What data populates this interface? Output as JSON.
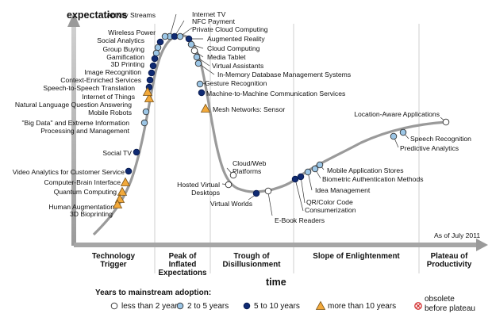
{
  "chart_data": {
    "type": "scatter",
    "y_axis_label": "expectations",
    "x_axis_label": "time",
    "as_of": "As of July 2011",
    "phases": [
      [
        "Technology",
        "Trigger"
      ],
      [
        "Peak of",
        "Inflated",
        "Expectations"
      ],
      [
        "Trough of",
        "Disillusionment"
      ],
      [
        "Slope of Enlightenment"
      ],
      [
        "Plateau of",
        "Productivity"
      ]
    ],
    "legend": {
      "title": "Years to mainstream adoption:",
      "items": [
        {
          "key": "lt2",
          "label": "less than 2 years",
          "color": "#ffffff"
        },
        {
          "key": "2to5",
          "label": "2 to 5 years",
          "color": "#9cc6e6"
        },
        {
          "key": "5to10",
          "label": "5 to 10 years",
          "color": "#0f2a72"
        },
        {
          "key": "gt10",
          "label": "more than 10 years",
          "color": "#f2a93b"
        },
        {
          "key": "obs",
          "label": [
            "obsolete",
            "before plateau"
          ],
          "color": "#d32f2f"
        }
      ]
    },
    "technologies": [
      {
        "name": "Internet TV",
        "cat": "2to5"
      },
      {
        "name": "NFC Payment",
        "cat": "5to10"
      },
      {
        "name": "Private Cloud Computing",
        "cat": "2to5"
      },
      {
        "name": "Augmented Reality",
        "cat": "5to10"
      },
      {
        "name": "Cloud Computing",
        "cat": "2to5"
      },
      {
        "name": "Media Tablet",
        "cat": "lt2"
      },
      {
        "name": "Virtual Assistants",
        "cat": "2to5"
      },
      {
        "name": "In-Memory Database Management Systems",
        "cat": "2to5"
      },
      {
        "name": "Gesture Recognition",
        "cat": "2to5"
      },
      {
        "name": "Machine-to-Machine Communication Services",
        "cat": "5to10"
      },
      {
        "name": "Mesh Networks: Sensor",
        "cat": "gt10"
      },
      {
        "name": "Activity Streams",
        "cat": "2to5"
      },
      {
        "name": "Wireless Power",
        "cat": "5to10"
      },
      {
        "name": "Social Analytics",
        "cat": "2to5"
      },
      {
        "name": "Group Buying",
        "cat": "2to5"
      },
      {
        "name": "Gamification",
        "cat": "5to10"
      },
      {
        "name": "3D Printing",
        "cat": "5to10"
      },
      {
        "name": "Image Recognition",
        "cat": "5to10"
      },
      {
        "name": "Context-Enriched Services",
        "cat": "5to10"
      },
      {
        "name": "Speech-to-Speech Translation",
        "cat": "5to10"
      },
      {
        "name": "Internet of Things",
        "cat": "gt10"
      },
      {
        "name": "Natural Language Question Answering",
        "cat": "gt10"
      },
      {
        "name": "Mobile Robots",
        "cat": "2to5"
      },
      {
        "name": "\"Big Data\" and Extreme Information",
        "cat": "2to5",
        "second_line": "Processing and Management"
      },
      {
        "name": "Social TV",
        "cat": "5to10"
      },
      {
        "name": "Video Analytics for Customer Service",
        "cat": "5to10"
      },
      {
        "name": "Computer-Brain Interface",
        "cat": "gt10"
      },
      {
        "name": "Quantum Computing",
        "cat": "gt10"
      },
      {
        "name": "Human Augmentation",
        "cat": "gt10"
      },
      {
        "name": "3D Bioprinting",
        "cat": "gt10"
      },
      {
        "name": "Cloud/Web",
        "cat": "lt2",
        "second_line": "Platforms"
      },
      {
        "name": "Hosted Virtual",
        "cat": "lt2",
        "second_line": "Desktops"
      },
      {
        "name": "Virtual Worlds",
        "cat": "5to10"
      },
      {
        "name": "E-Book Readers",
        "cat": "lt2"
      },
      {
        "name": "QR/Color Code",
        "cat": "5to10"
      },
      {
        "name": "Consumerization",
        "cat": "5to10"
      },
      {
        "name": "Idea Management",
        "cat": "2to5"
      },
      {
        "name": "Biometric Authentication Methods",
        "cat": "2to5"
      },
      {
        "name": "Mobile Application Stores",
        "cat": "2to5"
      },
      {
        "name": "Predictive Analytics",
        "cat": "2to5"
      },
      {
        "name": "Speech Recognition",
        "cat": "2to5"
      },
      {
        "name": "Location-Aware Applications",
        "cat": "lt2"
      }
    ]
  }
}
